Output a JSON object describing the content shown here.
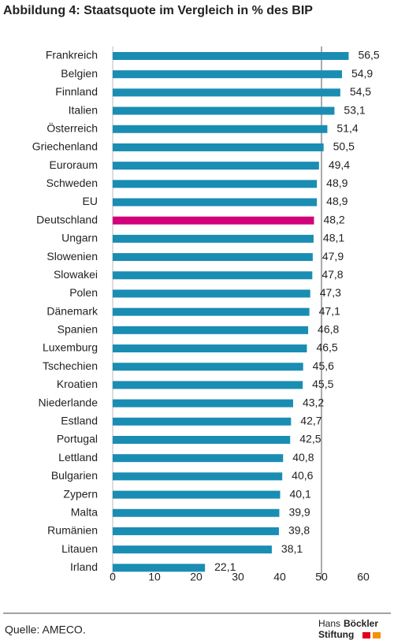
{
  "chart_data": {
    "type": "hbar",
    "title": "Abbildung 4: Staatsquote im Vergleich in % des BIP",
    "categories": [
      "Frankreich",
      "Belgien",
      "Finnland",
      "Italien",
      "Österreich",
      "Griechenland",
      "Euroraum",
      "Schweden",
      "EU",
      "Deutschland",
      "Ungarn",
      "Slowenien",
      "Slowakei",
      "Polen",
      "Dänemark",
      "Spanien",
      "Luxemburg",
      "Tschechien",
      "Kroatien",
      "Niederlande",
      "Estland",
      "Portugal",
      "Lettland",
      "Bulgarien",
      "Zypern",
      "Malta",
      "Rumänien",
      "Litauen",
      "Irland"
    ],
    "values": [
      56.5,
      54.9,
      54.5,
      53.1,
      51.4,
      50.5,
      49.4,
      48.9,
      48.9,
      48.2,
      48.1,
      47.9,
      47.8,
      47.3,
      47.1,
      46.8,
      46.5,
      45.6,
      45.5,
      43.2,
      42.7,
      42.5,
      40.8,
      40.6,
      40.1,
      39.9,
      39.8,
      38.1,
      22.1
    ],
    "value_labels": [
      "56,5",
      "54,9",
      "54,5",
      "53,1",
      "51,4",
      "50,5",
      "49,4",
      "48,9",
      "48,9",
      "48,2",
      "48,1",
      "47,9",
      "47,8",
      "47,3",
      "47,1",
      "46,8",
      "46,5",
      "45,6",
      "45,5",
      "43,2",
      "42,7",
      "42,5",
      "40,8",
      "40,6",
      "40,1",
      "39,9",
      "39,8",
      "38,1",
      "22,1"
    ],
    "colors": [
      "#1a8db3",
      "#1a8db3",
      "#1a8db3",
      "#1a8db3",
      "#1a8db3",
      "#1a8db3",
      "#1a8db3",
      "#1a8db3",
      "#1a8db3",
      "#d1007b",
      "#1a8db3",
      "#1a8db3",
      "#1a8db3",
      "#1a8db3",
      "#1a8db3",
      "#1a8db3",
      "#1a8db3",
      "#1a8db3",
      "#1a8db3",
      "#1a8db3",
      "#1a8db3",
      "#1a8db3",
      "#1a8db3",
      "#1a8db3",
      "#1a8db3",
      "#1a8db3",
      "#1a8db3",
      "#1a8db3",
      "#1a8db3"
    ],
    "xlim": [
      0,
      60
    ],
    "xticks": [
      0,
      10,
      20,
      30,
      40,
      50,
      60
    ],
    "reference_line": 50,
    "source": "Quelle: AMECO.",
    "logo": [
      "Hans",
      "Böckler",
      "Stiftung"
    ]
  }
}
